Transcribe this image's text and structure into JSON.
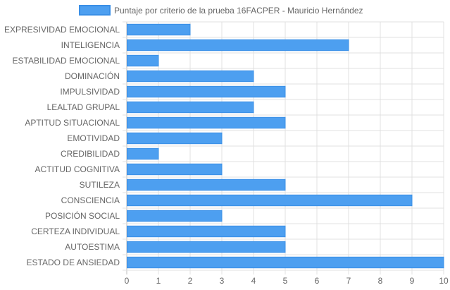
{
  "chart_data": {
    "type": "bar",
    "orientation": "horizontal",
    "categories": [
      "EXPRESIVIDAD EMOCIONAL",
      "INTELIGENCIA",
      "ESTABILIDAD EMOCIONAL",
      "DOMINACIÓN",
      "IMPULSIVIDAD",
      "LEALTAD GRUPAL",
      "APTITUD SITUACIONAL",
      "EMOTIVIDAD",
      "CREDIBILIDAD",
      "ACTITUD COGNITIVA",
      "SUTILEZA",
      "CONSCIENCIA",
      "POSICIÓN SOCIAL",
      "CERTEZA INDIVIDUAL",
      "AUTOESTIMA",
      "ESTADO DE ANSIEDAD"
    ],
    "series": [
      {
        "name": "Puntaje por criterio de la prueba 16FACPER - Mauricio Hernández",
        "values": [
          2,
          7,
          1,
          4,
          5,
          4,
          5,
          3,
          1,
          3,
          5,
          9,
          3,
          5,
          5,
          10
        ],
        "color": "#4d9ff0",
        "border_color": "#3a8fe6"
      }
    ],
    "xlim": [
      0,
      10
    ],
    "x_ticks": [
      "0",
      "1",
      "2",
      "3",
      "4",
      "5",
      "6",
      "7",
      "8",
      "9",
      "10"
    ],
    "title": "",
    "xlabel": "",
    "ylabel": "",
    "grid": true,
    "legend_position": "top"
  }
}
